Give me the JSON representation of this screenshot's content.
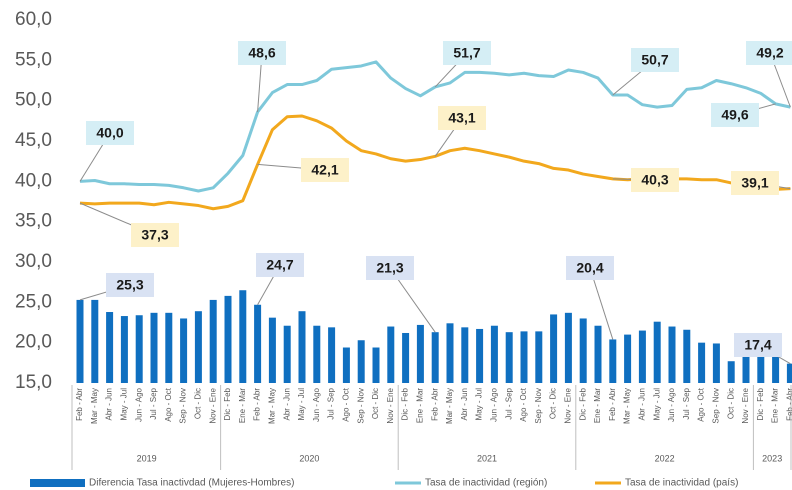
{
  "chart_data": {
    "type": "bar-line",
    "categories": [
      "Feb - Abr",
      "Mar - May",
      "Abr - Jun",
      "May - Jul",
      "Jun - Ago",
      "Jul - Sep",
      "Ago - Oct",
      "Sep - Nov",
      "Oct - Dic",
      "Nov - Ene",
      "Dic - Feb",
      "Ene - Mar",
      "Feb - Abr",
      "Mar - May",
      "Abr - Jun",
      "May - Jul",
      "Jun - Ago",
      "Jul - Sep",
      "Ago - Oct",
      "Sep - Nov",
      "Oct - Dic",
      "Nov - Ene",
      "Dic - Feb",
      "Ene - Mar",
      "Feb - Abr",
      "Mar - May",
      "Abr - Jun",
      "May - Jul",
      "Jun - Ago",
      "Jul - Sep",
      "Ago - Oct",
      "Sep - Nov",
      "Oct - Dic",
      "Nov - Ene",
      "Dic - Feb",
      "Ene - Mar",
      "Feb - Abr",
      "Mar - May",
      "Abr - Jun",
      "May - Jul",
      "Jun - Ago",
      "Jul - Sep",
      "Ago - Oct",
      "Sep - Nov",
      "Oct - Dic",
      "Nov - Ene",
      "Dic - Feb",
      "Ene - Mar",
      "Feb - Abr"
    ],
    "years": [
      "2019",
      "2020",
      "2021",
      "2022",
      "2023"
    ],
    "series": [
      {
        "name": "Diferencia Tasa inactivdad (Mujeres-Hombres)",
        "kind": "bar",
        "color": "#0f6fc0",
        "values": [
          25.3,
          25.3,
          23.8,
          23.3,
          23.4,
          23.7,
          23.7,
          23.0,
          23.9,
          25.3,
          25.8,
          26.5,
          24.7,
          23.1,
          22.1,
          23.9,
          22.1,
          21.9,
          19.4,
          20.3,
          19.4,
          22.0,
          21.2,
          22.2,
          21.3,
          22.4,
          21.9,
          21.7,
          22.1,
          21.3,
          21.4,
          21.4,
          23.5,
          23.7,
          23.0,
          22.1,
          20.4,
          21.0,
          21.5,
          22.6,
          22.0,
          21.6,
          20.0,
          19.9,
          17.7,
          20.8,
          19.8,
          20.5,
          17.4
        ],
        "value_labels": [
          "25,3",
          null,
          null,
          null,
          null,
          null,
          null,
          null,
          null,
          null,
          null,
          null,
          "24,7",
          null,
          null,
          null,
          null,
          null,
          null,
          null,
          null,
          null,
          null,
          null,
          "21,3",
          null,
          null,
          null,
          null,
          null,
          null,
          null,
          null,
          null,
          null,
          null,
          "20,4",
          null,
          null,
          null,
          null,
          null,
          null,
          null,
          null,
          null,
          null,
          null,
          "17,4"
        ]
      },
      {
        "name": "Tasa de inactividad (región)",
        "kind": "line",
        "color": "#7ec8da",
        "values": [
          40.0,
          40.1,
          39.7,
          39.7,
          39.6,
          39.6,
          39.5,
          39.2,
          38.8,
          39.2,
          41.0,
          43.2,
          48.6,
          51.0,
          52.0,
          52.0,
          52.5,
          53.9,
          54.1,
          54.3,
          54.8,
          52.8,
          51.5,
          50.6,
          51.7,
          52.2,
          53.5,
          53.5,
          53.4,
          53.2,
          53.4,
          53.1,
          53.0,
          53.8,
          53.5,
          52.8,
          50.7,
          50.7,
          49.5,
          49.2,
          49.4,
          51.4,
          51.6,
          52.5,
          52.1,
          51.6,
          50.9,
          49.6,
          49.2
        ],
        "value_labels": [
          "40,0",
          null,
          null,
          null,
          null,
          null,
          null,
          null,
          null,
          null,
          null,
          null,
          "48,6",
          null,
          null,
          null,
          null,
          null,
          null,
          null,
          null,
          null,
          null,
          null,
          "51,7",
          null,
          null,
          null,
          null,
          null,
          null,
          null,
          null,
          null,
          null,
          null,
          "50,7",
          null,
          null,
          null,
          null,
          null,
          null,
          null,
          null,
          null,
          null,
          "49,6",
          "49,2"
        ]
      },
      {
        "name": "Tasa de inactividad (país)",
        "kind": "line",
        "color": "#f2a81d",
        "values": [
          37.3,
          37.2,
          37.3,
          37.3,
          37.3,
          37.1,
          37.4,
          37.2,
          37.0,
          36.6,
          36.9,
          37.6,
          42.1,
          46.4,
          48.0,
          48.1,
          47.5,
          46.6,
          45.0,
          43.8,
          43.4,
          42.8,
          42.5,
          42.7,
          43.1,
          43.8,
          44.1,
          43.8,
          43.4,
          43.0,
          42.5,
          42.2,
          41.6,
          41.4,
          40.9,
          40.6,
          40.3,
          40.2,
          40.3,
          40.2,
          40.3,
          40.3,
          40.2,
          40.2,
          39.8,
          39.4,
          39.1,
          39.0,
          39.1
        ],
        "value_labels": [
          "37,3",
          null,
          null,
          null,
          null,
          null,
          null,
          null,
          null,
          null,
          null,
          null,
          "42,1",
          null,
          null,
          null,
          null,
          null,
          null,
          null,
          null,
          null,
          null,
          null,
          "43,1",
          null,
          null,
          null,
          null,
          null,
          null,
          null,
          null,
          null,
          null,
          null,
          "40,3",
          null,
          null,
          null,
          null,
          null,
          null,
          null,
          null,
          null,
          null,
          null,
          "39,1"
        ]
      }
    ],
    "ylim": [
      15,
      60
    ],
    "yticks": [
      {
        "value": 15,
        "label": "15,0"
      },
      {
        "value": 20,
        "label": "20,0"
      },
      {
        "value": 25,
        "label": "25,0"
      },
      {
        "value": 30,
        "label": "30,0"
      },
      {
        "value": 35,
        "label": "35,0"
      },
      {
        "value": 40,
        "label": "40,0"
      },
      {
        "value": 45,
        "label": "45,0"
      },
      {
        "value": 50,
        "label": "50,0"
      },
      {
        "value": 55,
        "label": "55,0"
      },
      {
        "value": 60,
        "label": "60,0"
      }
    ],
    "legend": "bottom"
  }
}
